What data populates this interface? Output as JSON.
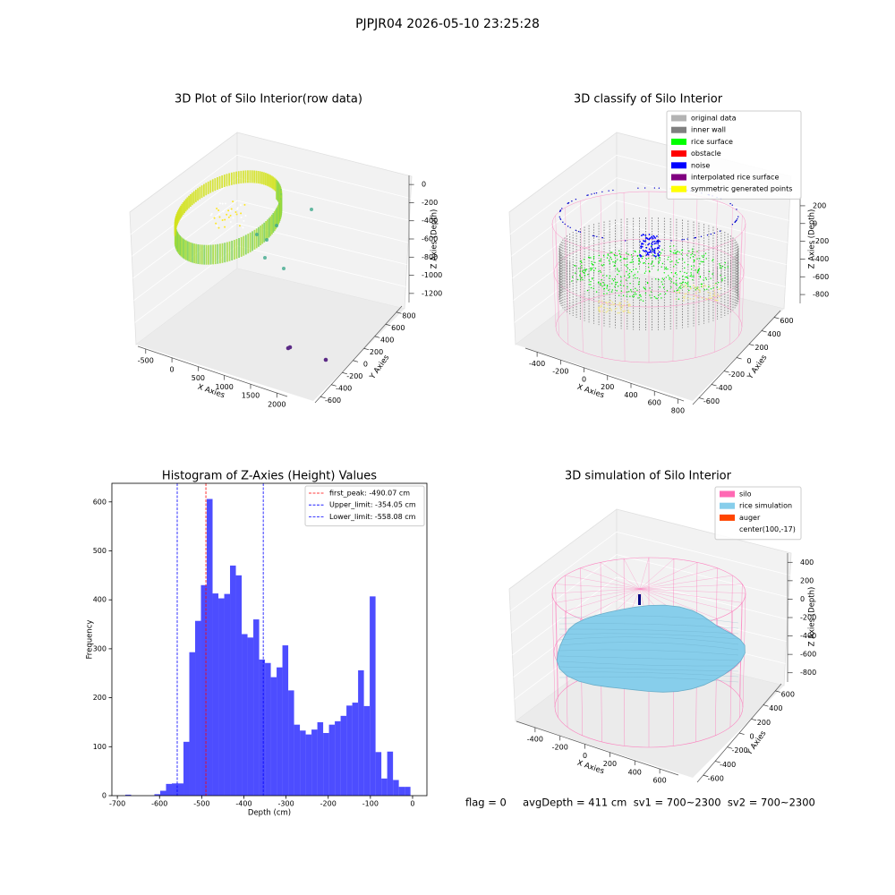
{
  "title": "PJPJR04 2026-05-10 23:25:28",
  "footer": "flag = 0     avgDepth = 411 cm  sv1 = 700~2300  sv2 = 700~2300",
  "chart_data": [
    {
      "type": "scatter3d",
      "title": "3D Plot of Silo Interior(row data)",
      "xlabel": "X Axies",
      "ylabel": "Y Axies",
      "zlabel": "Z Axies (Depth)",
      "xlim": [
        -650,
        2200
      ],
      "xticks": [
        -500,
        0,
        500,
        1000,
        1500,
        2000
      ],
      "ylim": [
        -700,
        900
      ],
      "yticks": [
        -600,
        -400,
        -200,
        0,
        200,
        400,
        600,
        800
      ],
      "zlim": [
        -1300,
        100
      ],
      "zticks": [
        -1200,
        -1000,
        -800,
        -600,
        -400,
        -200,
        0
      ]
    },
    {
      "type": "scatter3d",
      "title": "3D classify of Silo Interior",
      "xlabel": "X Axies",
      "ylabel": "Y Axies",
      "zlabel": "Z Axies (Depth)",
      "xlim": [
        -500,
        850
      ],
      "xticks": [
        -400,
        -200,
        0,
        200,
        400,
        600,
        800
      ],
      "ylim": [
        -700,
        700
      ],
      "yticks": [
        -600,
        -400,
        -200,
        0,
        200,
        400,
        600
      ],
      "zlim": [
        -900,
        300
      ],
      "zticks": [
        -800,
        -600,
        -400,
        -200,
        0,
        200
      ],
      "legend_loc": "upper right",
      "legend": [
        {
          "name": "original data",
          "color": "#b3b3b3"
        },
        {
          "name": "inner wall",
          "color": "#808080"
        },
        {
          "name": "rice surface",
          "color": "#00ff00"
        },
        {
          "name": "obstacle",
          "color": "#ff0000"
        },
        {
          "name": "noise",
          "color": "#0000ff"
        },
        {
          "name": "interpolated rice surface",
          "color": "#800080"
        },
        {
          "name": "symmetric generated points",
          "color": "#ffff00"
        }
      ]
    },
    {
      "type": "histogram",
      "title": "Histogram of Z-Axies (Height) Values",
      "xlabel": "Depth (cm)",
      "ylabel": "Frequency",
      "color": "#4d4dff",
      "bins": [
        -695,
        -681.2,
        -667.4,
        -653.6,
        -639.8,
        -626,
        -612.2,
        -598.4,
        -584.6,
        -570.8,
        -557,
        -543.2,
        -529.4,
        -515.6,
        -501.8,
        -488,
        -474.2,
        -460.4,
        -446.6,
        -432.8,
        -419,
        -405.2,
        -391.4,
        -377.6,
        -363.8,
        -350,
        -336.2,
        -322.4,
        -308.6,
        -294.8,
        -281,
        -267.2,
        -253.4,
        -239.6,
        -225.8,
        -212,
        -198.2,
        -184.4,
        -170.6,
        -156.8,
        -143,
        -129.2,
        -115.4,
        -101.6,
        -87.8,
        -74,
        -60.2,
        -46.4,
        -32.6,
        -18.8,
        -5
      ],
      "values": [
        0,
        2,
        0,
        0,
        0,
        0,
        3,
        10,
        24,
        25,
        25,
        110,
        293,
        357,
        430,
        606,
        413,
        403,
        412,
        470,
        450,
        330,
        323,
        360,
        278,
        271,
        242,
        262,
        307,
        215,
        145,
        133,
        125,
        135,
        150,
        128,
        145,
        152,
        163,
        184,
        190,
        256,
        183,
        407,
        89,
        35,
        90,
        32,
        18,
        18
      ],
      "xlim": [
        -713,
        34
      ],
      "xticks": [
        -700,
        -600,
        -500,
        -400,
        -300,
        -200,
        -100,
        0
      ],
      "ylim": [
        0,
        638
      ],
      "yticks": [
        0,
        100,
        200,
        300,
        400,
        500,
        600
      ],
      "legend_loc": "upper right",
      "vlines": [
        {
          "name": "first_peak: -490.07 cm",
          "value": -490.07,
          "color": "#ff0000"
        },
        {
          "name": "Upper_limit: -354.05 cm",
          "value": -354.05,
          "color": "#0000ff"
        },
        {
          "name": "Lower_limit: -558.08 cm",
          "value": -558.08,
          "color": "#0000ff"
        }
      ]
    },
    {
      "type": "surface3d",
      "title": "3D simulation of Silo Interior",
      "xlabel": "X Axies",
      "ylabel": "Y Axies",
      "zlabel": "Z Axies (Depth)",
      "xlim": [
        -550,
        750
      ],
      "xticks": [
        -400,
        -200,
        0,
        200,
        400,
        600
      ],
      "ylim": [
        -700,
        700
      ],
      "yticks": [
        -600,
        -400,
        -200,
        0,
        200,
        400,
        600
      ],
      "zlim": [
        -900,
        500
      ],
      "zticks": [
        -800,
        -600,
        -400,
        -200,
        0,
        200,
        400
      ],
      "legend_loc": "upper right",
      "legend": [
        {
          "name": "silo",
          "color": "#ff69b4"
        },
        {
          "name": "rice simulation",
          "color": "#87ceeb"
        },
        {
          "name": "auger",
          "color": "#ff4500"
        },
        {
          "name": "center(100,-17)",
          "color": "#ffffff"
        }
      ]
    }
  ]
}
